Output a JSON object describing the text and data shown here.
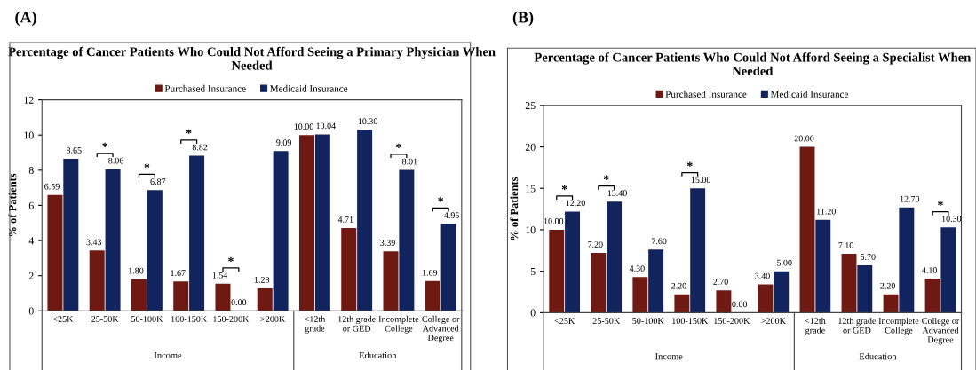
{
  "chart_data": [
    {
      "type": "bar",
      "title": "Percentage of Cancer Patients Who Could Not Afford Seeing a Primary Physician When Needed",
      "ylabel": "% of Patients",
      "categories": [
        "<25K",
        "25-50K",
        "50-100K",
        "100-150K",
        "150-200K",
        ">200K",
        "<12th\ngrade",
        "12th grade\nor GED",
        "Incomplete\nCollege",
        "College or\nAdvanced\nDegree"
      ],
      "series": [
        {
          "name": "Purchased Insurance",
          "color": "#6e1a12",
          "values": [
            6.59,
            3.43,
            1.8,
            1.67,
            1.54,
            1.28,
            10.0,
            4.71,
            3.39,
            1.69
          ],
          "value_labels": [
            "6.59",
            "3.43",
            "1.80",
            "1.67",
            "1.54",
            "1.28",
            "10.00",
            "4.71",
            "3.39",
            "1.69"
          ]
        },
        {
          "name": "Medicaid Insurance",
          "color": "#12245e",
          "values": [
            8.65,
            8.06,
            6.87,
            8.82,
            0.0,
            9.09,
            10.04,
            10.3,
            8.01,
            4.95
          ],
          "value_labels": [
            "8.65",
            "8.06",
            "6.87",
            "8.82",
            "0.00",
            "9.09",
            "10.04",
            "10.30",
            "8.01",
            "4.95"
          ]
        }
      ],
      "ylim": [
        0,
        12
      ],
      "yticks": [
        0,
        2,
        4,
        6,
        8,
        10,
        12
      ],
      "grid": false,
      "legend": "top",
      "annotations": [
        "(A)",
        "Income",
        "Education",
        {
          "text": "*",
          "x": "25-50K",
          "y": 8.06
        },
        {
          "text": "*",
          "x": "50-100K",
          "y": 6.87
        },
        {
          "text": "*",
          "x": "100-150K",
          "y": 8.82
        },
        {
          "text": "*",
          "x": "150-200K",
          "y": 1.54
        },
        {
          "text": "*",
          "x": "Incomplete\nCollege",
          "y": 8.01
        },
        {
          "text": "*",
          "x": "College or\nAdvanced\nDegree",
          "y": 4.95
        }
      ]
    },
    {
      "type": "bar",
      "title": "Percentage of Cancer Patients Who Could Not Afford Seeing a Specialist When Needed",
      "ylabel": "% of Patients",
      "categories": [
        "<25K",
        "25-50K",
        "50-100K",
        "100-150K",
        "150-200K",
        ">200K",
        "<12th\ngrade",
        "12th grade\nor GED",
        "Incomplete\nCollege",
        "College or\nAdvanced\nDegree"
      ],
      "series": [
        {
          "name": "Purchased Insurance",
          "color": "#6e1a12",
          "values": [
            10.0,
            7.2,
            4.3,
            2.2,
            2.7,
            3.4,
            20.0,
            7.1,
            2.2,
            4.1
          ],
          "value_labels": [
            "10.00",
            "7.20",
            "4.30",
            "2.20",
            "2.70",
            "3.40",
            "20.00",
            "7.10",
            "2.20",
            "4.10"
          ]
        },
        {
          "name": "Medicaid Insurance",
          "color": "#12245e",
          "values": [
            12.2,
            13.4,
            7.6,
            15.0,
            0.0,
            5.0,
            11.2,
            5.7,
            12.7,
            10.3
          ],
          "value_labels": [
            "12.20",
            "13.40",
            "7.60",
            "15.00",
            "0.00",
            "5.00",
            "11.20",
            "5.70",
            "12.70",
            "10.30"
          ]
        }
      ],
      "ylim": [
        0,
        25
      ],
      "yticks": [
        0,
        5,
        10,
        15,
        20,
        25
      ],
      "grid": false,
      "legend": "top",
      "annotations": [
        "(B)",
        "Income",
        "Education",
        {
          "text": "*",
          "x": "<25K",
          "y": 12.2
        },
        {
          "text": "*",
          "x": "25-50K",
          "y": 13.4
        },
        {
          "text": "*",
          "x": "100-150K",
          "y": 15.0
        },
        {
          "text": "*",
          "x": "College or\nAdvanced\nDegree",
          "y": 10.3
        }
      ]
    }
  ]
}
